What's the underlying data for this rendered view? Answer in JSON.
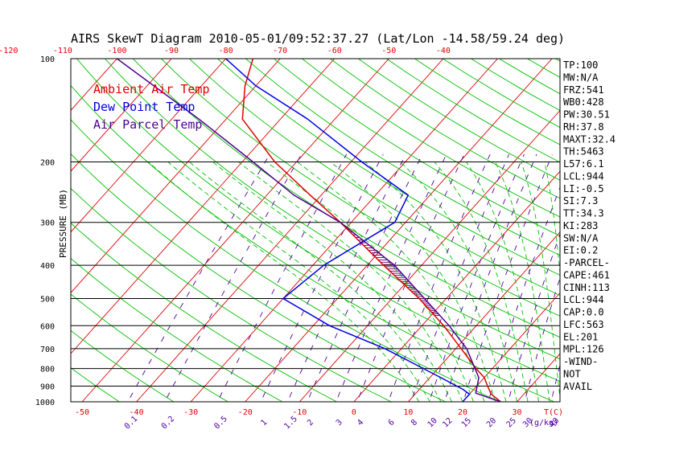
{
  "chart_data": {
    "type": "line",
    "title": "AIRS SkewT Diagram 2010-05-01/09:52:37.27 (Lat/Lon -14.58/59.24 deg)",
    "ylabel": "PRESSURE (MB)",
    "x_unit_label": "T(C)",
    "mixing_ratio_unit": "g/kg",
    "y_scale": "log",
    "ylim": [
      1000,
      100
    ],
    "pressure_ticks": [
      "100",
      "200",
      "300",
      "400",
      "500",
      "600",
      "700",
      "800",
      "900",
      "1000"
    ],
    "top_temperature_ticks": [
      "-120",
      "-110",
      "-100",
      "-90",
      "-80",
      "-70",
      "-60",
      "-50",
      "-40"
    ],
    "bottom_temperature_ticks": [
      "-50",
      "-40",
      "-30",
      "-20",
      "-10",
      "0",
      "10",
      "20",
      "30"
    ],
    "mixing_ratio_ticks": [
      "0.1",
      "0.2",
      "0.5",
      "1",
      "1.5",
      "2",
      "3",
      "4",
      "6",
      "8",
      "10",
      "12",
      "15",
      "20",
      "25",
      "30",
      "40"
    ],
    "legend": [
      {
        "label": "Ambient Air Temp",
        "color": "#e00000"
      },
      {
        "label": "Dew Point Temp",
        "color": "#0000e0"
      },
      {
        "label": "Air Parcel Temp",
        "color": "#500090"
      }
    ],
    "series": [
      {
        "name": "Ambient Air Temp",
        "color": "#e00000",
        "points": [
          [
            1000,
            27
          ],
          [
            950,
            24
          ],
          [
            900,
            22
          ],
          [
            850,
            20
          ],
          [
            800,
            17
          ],
          [
            700,
            11
          ],
          [
            600,
            4
          ],
          [
            500,
            -5
          ],
          [
            400,
            -17
          ],
          [
            300,
            -32
          ],
          [
            250,
            -42
          ],
          [
            200,
            -54
          ],
          [
            150,
            -67
          ],
          [
            120,
            -72
          ],
          [
            100,
            -75
          ]
        ]
      },
      {
        "name": "Dew Point Temp",
        "color": "#0000e0",
        "points": [
          [
            1000,
            20
          ],
          [
            950,
            20
          ],
          [
            920,
            18
          ],
          [
            850,
            12
          ],
          [
            700,
            -3
          ],
          [
            600,
            -17
          ],
          [
            500,
            -30
          ],
          [
            400,
            -28
          ],
          [
            300,
            -22
          ],
          [
            250,
            -24
          ],
          [
            200,
            -38
          ],
          [
            150,
            -55
          ],
          [
            120,
            -70
          ],
          [
            100,
            -80
          ]
        ]
      },
      {
        "name": "Air Parcel Temp",
        "color": "#500090",
        "points": [
          [
            1000,
            27
          ],
          [
            944,
            21
          ],
          [
            850,
            19
          ],
          [
            700,
            12
          ],
          [
            600,
            5
          ],
          [
            500,
            -4
          ],
          [
            400,
            -15
          ],
          [
            300,
            -32
          ],
          [
            250,
            -45
          ],
          [
            200,
            -58
          ],
          [
            150,
            -75
          ],
          [
            100,
            -100
          ]
        ]
      }
    ],
    "indices": [
      "TP:100",
      "MW:N/A",
      "FRZ:541",
      "WB0:428",
      "PW:30.51",
      "RH:37.8",
      "MAXT:32.4",
      "TH:5463",
      "L57:6.1",
      "LCL:944",
      "LI:-0.5",
      "SI:7.3",
      "TT:34.3",
      "KI:283",
      "SW:N/A",
      "EI:0.2",
      "-PARCEL-",
      "CAPE:461",
      "CINH:113",
      "LCL:944",
      "CAP:0.0",
      "LFC:563",
      "EL:201",
      "MPL:126",
      "-WIND-",
      "NOT",
      "AVAIL"
    ],
    "colors": {
      "isotherm": "#e00000",
      "dry_adiabat": "#00c000",
      "moist_adiabat": "#00c000",
      "mixing_ratio": "#5000a0",
      "isobar": "#000000",
      "cape_hatch": "#6b0060"
    }
  }
}
